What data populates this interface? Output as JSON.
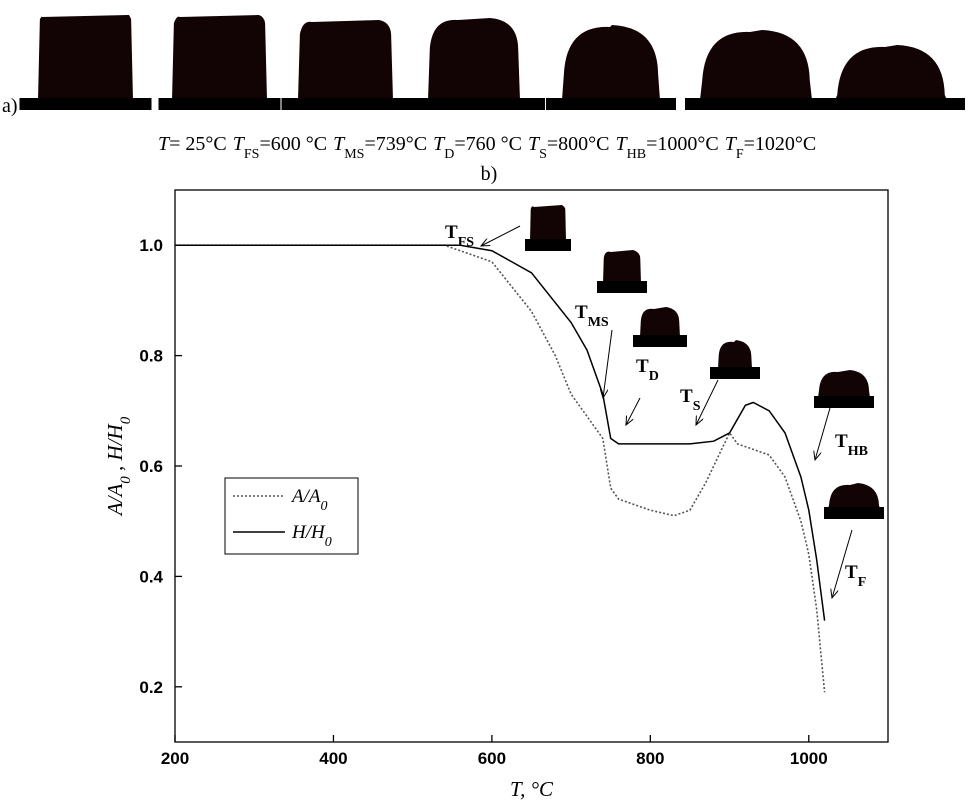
{
  "panel_a": {
    "label": "a)",
    "captions": [
      [
        {
          "text": "T"
        },
        {
          "text": "= 25°C"
        }
      ],
      [
        {
          "text": "T"
        },
        {
          "sub": "FS"
        },
        {
          "text": "=600 °C"
        }
      ],
      [
        {
          "text": "T"
        },
        {
          "sub": "MS"
        },
        {
          "text": "=739°C"
        }
      ],
      [
        {
          "text": "T"
        },
        {
          "sub": "D"
        },
        {
          "text": "=760 °C"
        }
      ],
      [
        {
          "text": "T"
        },
        {
          "sub": "S"
        },
        {
          "text": "=800°C"
        }
      ],
      [
        {
          "text": "T"
        },
        {
          "sub": "HB"
        },
        {
          "text": "=1000°C"
        }
      ],
      [
        {
          "text": "T"
        },
        {
          "sub": "F"
        },
        {
          "text": "=1020°C"
        }
      ]
    ]
  },
  "panel_b": {
    "label": "b)"
  },
  "chart_data": {
    "type": "line",
    "x_label": "T, °C",
    "y_label": [
      {
        "text": "A/A"
      },
      {
        "sub": "0"
      },
      {
        "text": " , H/H"
      },
      {
        "sub": "0"
      }
    ],
    "xlim": [
      200,
      1100
    ],
    "ylim": [
      0.1,
      1.1
    ],
    "xticks": [
      200,
      400,
      600,
      800,
      1000
    ],
    "yticks": [
      {
        "value": 0.2,
        "label": "0.2"
      },
      {
        "value": 0.4,
        "label": "0.4"
      },
      {
        "value": 0.6,
        "label": "0.6"
      },
      {
        "value": 0.8,
        "label": "0.8"
      },
      {
        "value": 1.0,
        "label": "1.0"
      }
    ],
    "legend": "center-left",
    "series": [
      {
        "name": "A/A0",
        "color": "#555555",
        "style": "dotted",
        "x": [
          200,
          540,
          600,
          650,
          680,
          700,
          720,
          740,
          750,
          760,
          800,
          830,
          850,
          870,
          890,
          900,
          910,
          930,
          950,
          970,
          990,
          1000,
          1010,
          1020
        ],
        "values": [
          1.0,
          1.0,
          0.97,
          0.88,
          0.8,
          0.73,
          0.69,
          0.65,
          0.56,
          0.54,
          0.52,
          0.51,
          0.52,
          0.57,
          0.63,
          0.66,
          0.64,
          0.63,
          0.62,
          0.58,
          0.5,
          0.44,
          0.34,
          0.19
        ]
      },
      {
        "name": "H/H0",
        "color": "#000000",
        "style": "solid",
        "x": [
          200,
          560,
          600,
          650,
          700,
          720,
          740,
          750,
          760,
          800,
          850,
          880,
          900,
          920,
          930,
          950,
          970,
          990,
          1000,
          1010,
          1020
        ],
        "values": [
          1.0,
          1.0,
          0.99,
          0.95,
          0.86,
          0.81,
          0.73,
          0.65,
          0.64,
          0.64,
          0.64,
          0.645,
          0.66,
          0.71,
          0.715,
          0.7,
          0.66,
          0.58,
          0.52,
          0.43,
          0.32
        ]
      }
    ],
    "annotations": [
      [
        {
          "text": "T"
        },
        {
          "sub": "FS"
        }
      ],
      [
        {
          "text": "T"
        },
        {
          "sub": "MS"
        }
      ],
      [
        {
          "text": "T"
        },
        {
          "sub": "D"
        }
      ],
      [
        {
          "text": "T"
        },
        {
          "sub": "S"
        }
      ],
      [
        {
          "text": "T"
        },
        {
          "sub": "HB"
        }
      ],
      [
        {
          "text": "T"
        },
        {
          "sub": "F"
        }
      ]
    ]
  }
}
